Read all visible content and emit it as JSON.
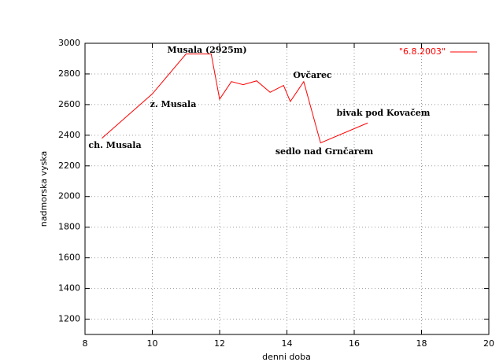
{
  "chart_data": {
    "type": "line",
    "x_label": "denni doba",
    "y_label": "nadmorska vyska",
    "series": [
      {
        "name": "\"6.8.2003\"",
        "color": "#ff0000",
        "x": [
          8.5,
          10,
          11,
          11.75,
          12,
          12.35,
          12.7,
          13.1,
          13.5,
          13.9,
          14.1,
          14.5,
          15,
          16.4
        ],
        "values": [
          2380,
          2670,
          2930,
          2930,
          2635,
          2750,
          2730,
          2755,
          2680,
          2725,
          2620,
          2750,
          2350,
          2480
        ]
      }
    ],
    "annotations": [
      "ch. Musala",
      "z. Musala",
      "Musala (2925m)",
      "Ovčarec",
      "sedlo nad Grnčarem",
      "bivak pod Kovačem"
    ],
    "xlim": [
      8,
      20
    ],
    "xticks": [
      8,
      10,
      12,
      14,
      16,
      18,
      20
    ],
    "ylim": [
      1100,
      3000
    ],
    "yticks": [
      1200,
      1400,
      1600,
      1800,
      2000,
      2200,
      2400,
      2600,
      2800,
      3000
    ],
    "grid": true,
    "legend": "top-right"
  }
}
